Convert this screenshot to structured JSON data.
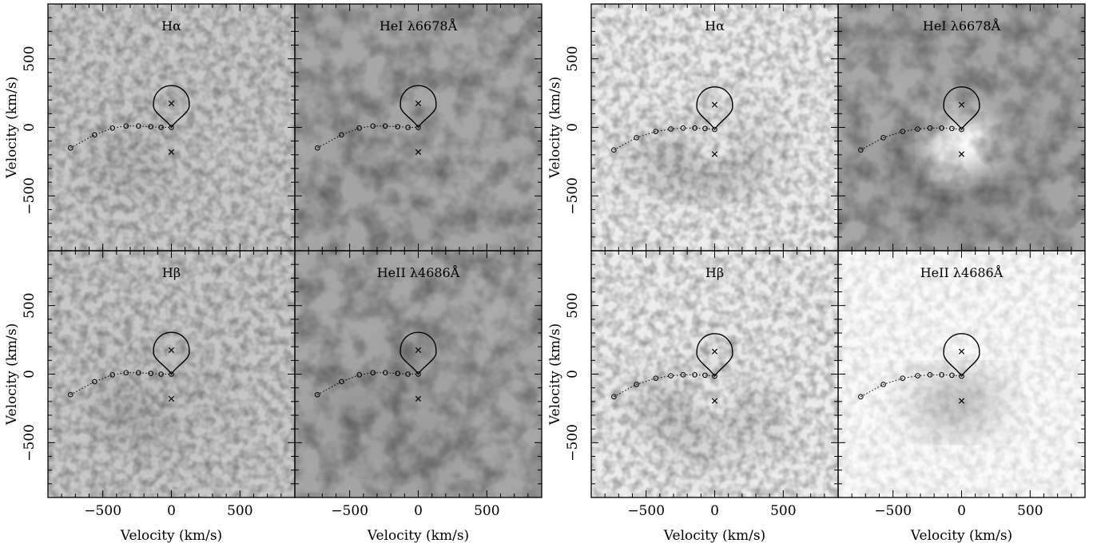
{
  "figure": {
    "xlabel": "Velocity (km/s)",
    "ylabel": "Velocity (km/s)",
    "xlim": [
      -900,
      900
    ],
    "ylim": [
      -900,
      900
    ],
    "ticks_labeled": [
      -500,
      0,
      500
    ],
    "tick_labels": [
      "−500",
      "0",
      "500"
    ]
  },
  "chart_data": [
    {
      "type": "heatmap",
      "group": "left",
      "panels": [
        {
          "label": "Hα",
          "shade": "medium",
          "white_feature": false
        },
        {
          "label": "HeI λ6678Å",
          "shade": "strong",
          "white_feature": false
        },
        {
          "label": "Hβ",
          "shade": "medium",
          "white_feature": false
        },
        {
          "label": "HeII λ4686Å",
          "shade": "strong",
          "white_feature": false
        }
      ],
      "overlay": {
        "stream_points": [
          [
            -735,
            -150
          ],
          [
            -560,
            -55
          ],
          [
            -430,
            -5
          ],
          [
            -330,
            10
          ],
          [
            -240,
            10
          ],
          [
            -150,
            5
          ],
          [
            -75,
            0
          ],
          [
            0,
            0
          ]
        ],
        "marker_points": [
          [
            0,
            175
          ],
          [
            0,
            -180
          ]
        ],
        "roche_lobe": {
          "center": [
            0,
            175
          ],
          "radius": 130
        }
      }
    },
    {
      "type": "heatmap",
      "group": "right",
      "panels": [
        {
          "label": "Hα",
          "shade": "light",
          "white_feature": true
        },
        {
          "label": "HeI λ6678Å",
          "shade": "strong",
          "white_feature": true
        },
        {
          "label": "Hβ",
          "shade": "light",
          "white_feature": true
        },
        {
          "label": "HeII λ4686Å",
          "shade": "faint",
          "white_feature": false
        }
      ],
      "overlay": {
        "stream_points": [
          [
            -735,
            -165
          ],
          [
            -570,
            -75
          ],
          [
            -430,
            -30
          ],
          [
            -320,
            -12
          ],
          [
            -230,
            -5
          ],
          [
            -145,
            -5
          ],
          [
            -70,
            -8
          ],
          [
            0,
            -15
          ]
        ],
        "marker_points": [
          [
            0,
            165
          ],
          [
            0,
            -195
          ]
        ],
        "roche_lobe": {
          "center": [
            0,
            165
          ],
          "radius": 130
        }
      }
    }
  ]
}
